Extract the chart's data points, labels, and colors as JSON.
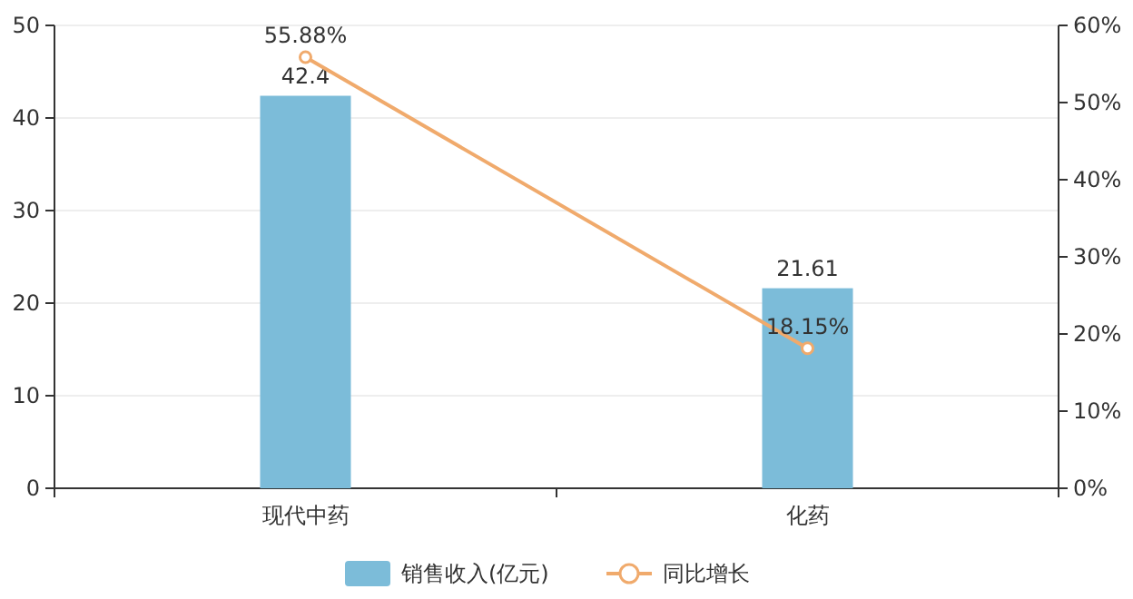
{
  "chart_data": {
    "type": "bar",
    "categories": [
      "现代中药",
      "化药"
    ],
    "series": [
      {
        "name": "销售收入(亿元)",
        "color": "#7cbcd9",
        "values": [
          42.4,
          21.61
        ],
        "value_labels": [
          "42.4",
          "21.61"
        ]
      },
      {
        "name": "同比增长",
        "type": "line",
        "axis": "y2",
        "color": "#f0aa6c",
        "values": [
          55.88,
          18.15
        ],
        "value_labels": [
          "55.88%",
          "18.15%"
        ]
      }
    ],
    "ylim": [
      0,
      50
    ],
    "yticks": [
      0,
      10,
      20,
      30,
      40,
      50
    ],
    "y2lim": [
      0,
      60
    ],
    "y2ticks": [
      {
        "value": 0,
        "label": "0%"
      },
      {
        "value": 10,
        "label": "10%"
      },
      {
        "value": 20,
        "label": "20%"
      },
      {
        "value": 30,
        "label": "30%"
      },
      {
        "value": 40,
        "label": "40%"
      },
      {
        "value": 50,
        "label": "50%"
      },
      {
        "value": 60,
        "label": "60%"
      }
    ],
    "grid": "y",
    "legend": "bottom",
    "marker": "circle"
  }
}
